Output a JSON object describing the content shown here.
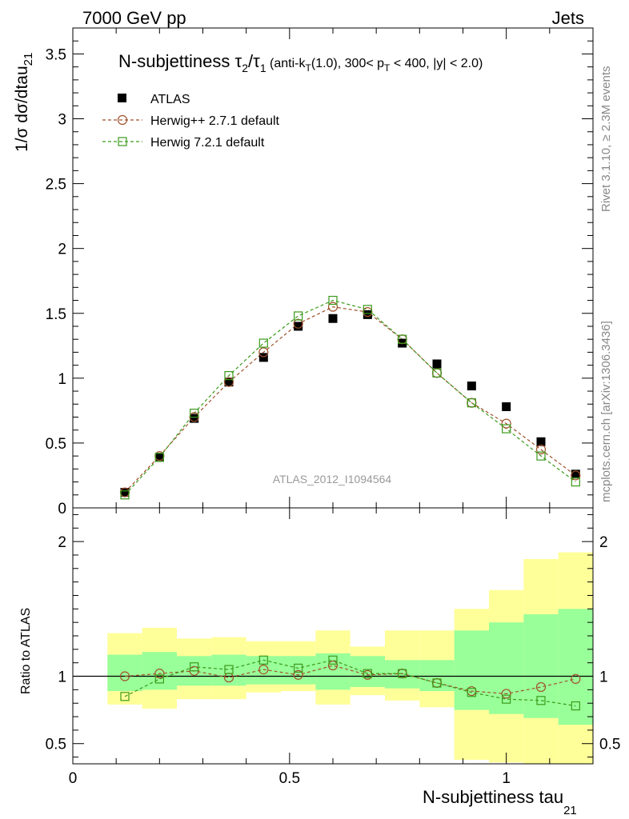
{
  "header": {
    "left": "7000 GeV pp",
    "right": "Jets"
  },
  "side_text": {
    "rivet": "Rivet 3.1.10, ≥ 2.3M events",
    "mcplots": "mcplots.cern.ch [arXiv:1306.3436]"
  },
  "title": {
    "main": "N-subjettiness τ",
    "sub1": "2",
    "slash": "/τ",
    "sub2": "1",
    "cuts_a": " (anti-k",
    "cuts_sub_t": "T",
    "cuts_b": "(1.0), 300< p",
    "cuts_sub_t2": "T",
    "cuts_c": " < 400, |y| < 2.0)"
  },
  "watermark": "ATLAS_2012_I1094564",
  "axes": {
    "ylabel_main": "1/σ dσ/dtau",
    "ylabel_main_sub": "21",
    "ylabel_ratio": "Ratio to ATLAS",
    "xlabel": "N-subjettiness tau",
    "xlabel_sub": "21"
  },
  "chart_data": {
    "type": "scatter",
    "x": [
      0.12,
      0.2,
      0.28,
      0.36,
      0.44,
      0.52,
      0.6,
      0.68,
      0.76,
      0.84,
      0.92,
      1.0,
      1.08,
      1.16
    ],
    "xlim": [
      0,
      1.2
    ],
    "ylim_main": [
      0,
      3.7
    ],
    "ylim_ratio": [
      0.35,
      2.25
    ],
    "x_ticks": [
      "0",
      "0.5",
      "1"
    ],
    "y_ticks_main": [
      "0",
      "0.5",
      "1",
      "1.5",
      "2",
      "2.5",
      "3",
      "3.5"
    ],
    "y_ticks_ratio": [
      "0.5",
      "1",
      "2"
    ],
    "series": [
      {
        "name": "ATLAS",
        "color": "#000000",
        "marker": "filled-square",
        "values": [
          0.12,
          0.39,
          0.69,
          0.97,
          1.16,
          1.4,
          1.46,
          1.49,
          1.27,
          1.11,
          0.94,
          0.78,
          0.51,
          0.26
        ]
      },
      {
        "name": "Herwig++ 2.7.1 default",
        "color": "#a0522d",
        "marker": "open-circle",
        "values": [
          0.12,
          0.4,
          0.7,
          0.97,
          1.2,
          1.42,
          1.55,
          1.51,
          1.3,
          1.04,
          0.81,
          0.65,
          0.45,
          0.25
        ]
      },
      {
        "name": "Herwig 7.2.1 default",
        "color": "#3a9a1a",
        "marker": "open-square",
        "values": [
          0.1,
          0.39,
          0.73,
          1.02,
          1.27,
          1.48,
          1.6,
          1.53,
          1.3,
          1.04,
          0.81,
          0.61,
          0.4,
          0.2
        ]
      }
    ],
    "ratio": [
      {
        "name": "Herwig++ 2.7.1 default",
        "values": [
          1.0,
          1.02,
          1.04,
          0.99,
          1.05,
          1.01,
          1.08,
          1.01,
          1.02,
          0.95,
          0.89,
          0.87,
          0.92,
          0.98
        ]
      },
      {
        "name": "Herwig 7.2.1 default",
        "values": [
          0.85,
          0.98,
          1.07,
          1.05,
          1.12,
          1.06,
          1.12,
          1.02,
          1.02,
          0.95,
          0.88,
          0.83,
          0.82,
          0.78
        ]
      }
    ],
    "bands": {
      "bin_edges": [
        0.08,
        0.16,
        0.24,
        0.32,
        0.4,
        0.48,
        0.56,
        0.64,
        0.72,
        0.8,
        0.88,
        0.96,
        1.04,
        1.12,
        1.2
      ],
      "inner": [
        [
          0.89,
          1.16
        ],
        [
          0.9,
          1.18
        ],
        [
          0.93,
          1.15
        ],
        [
          0.93,
          1.16
        ],
        [
          0.94,
          1.15
        ],
        [
          0.94,
          1.15
        ],
        [
          0.9,
          1.17
        ],
        [
          0.92,
          1.15
        ],
        [
          0.91,
          1.12
        ],
        [
          0.89,
          1.12
        ],
        [
          0.75,
          1.34
        ],
        [
          0.72,
          1.4
        ],
        [
          0.69,
          1.46
        ],
        [
          0.64,
          1.5
        ]
      ],
      "outer": [
        [
          0.79,
          1.32
        ],
        [
          0.76,
          1.36
        ],
        [
          0.83,
          1.28
        ],
        [
          0.83,
          1.29
        ],
        [
          0.88,
          1.26
        ],
        [
          0.89,
          1.26
        ],
        [
          0.79,
          1.34
        ],
        [
          0.86,
          1.22
        ],
        [
          0.82,
          1.34
        ],
        [
          0.77,
          1.34
        ],
        [
          0.38,
          1.5
        ],
        [
          0.36,
          1.64
        ],
        [
          0.35,
          1.87
        ],
        [
          0.35,
          1.92
        ]
      ],
      "inner_color": "#99ff99",
      "outer_color": "#ffff99"
    },
    "legend_position": "top-left"
  }
}
